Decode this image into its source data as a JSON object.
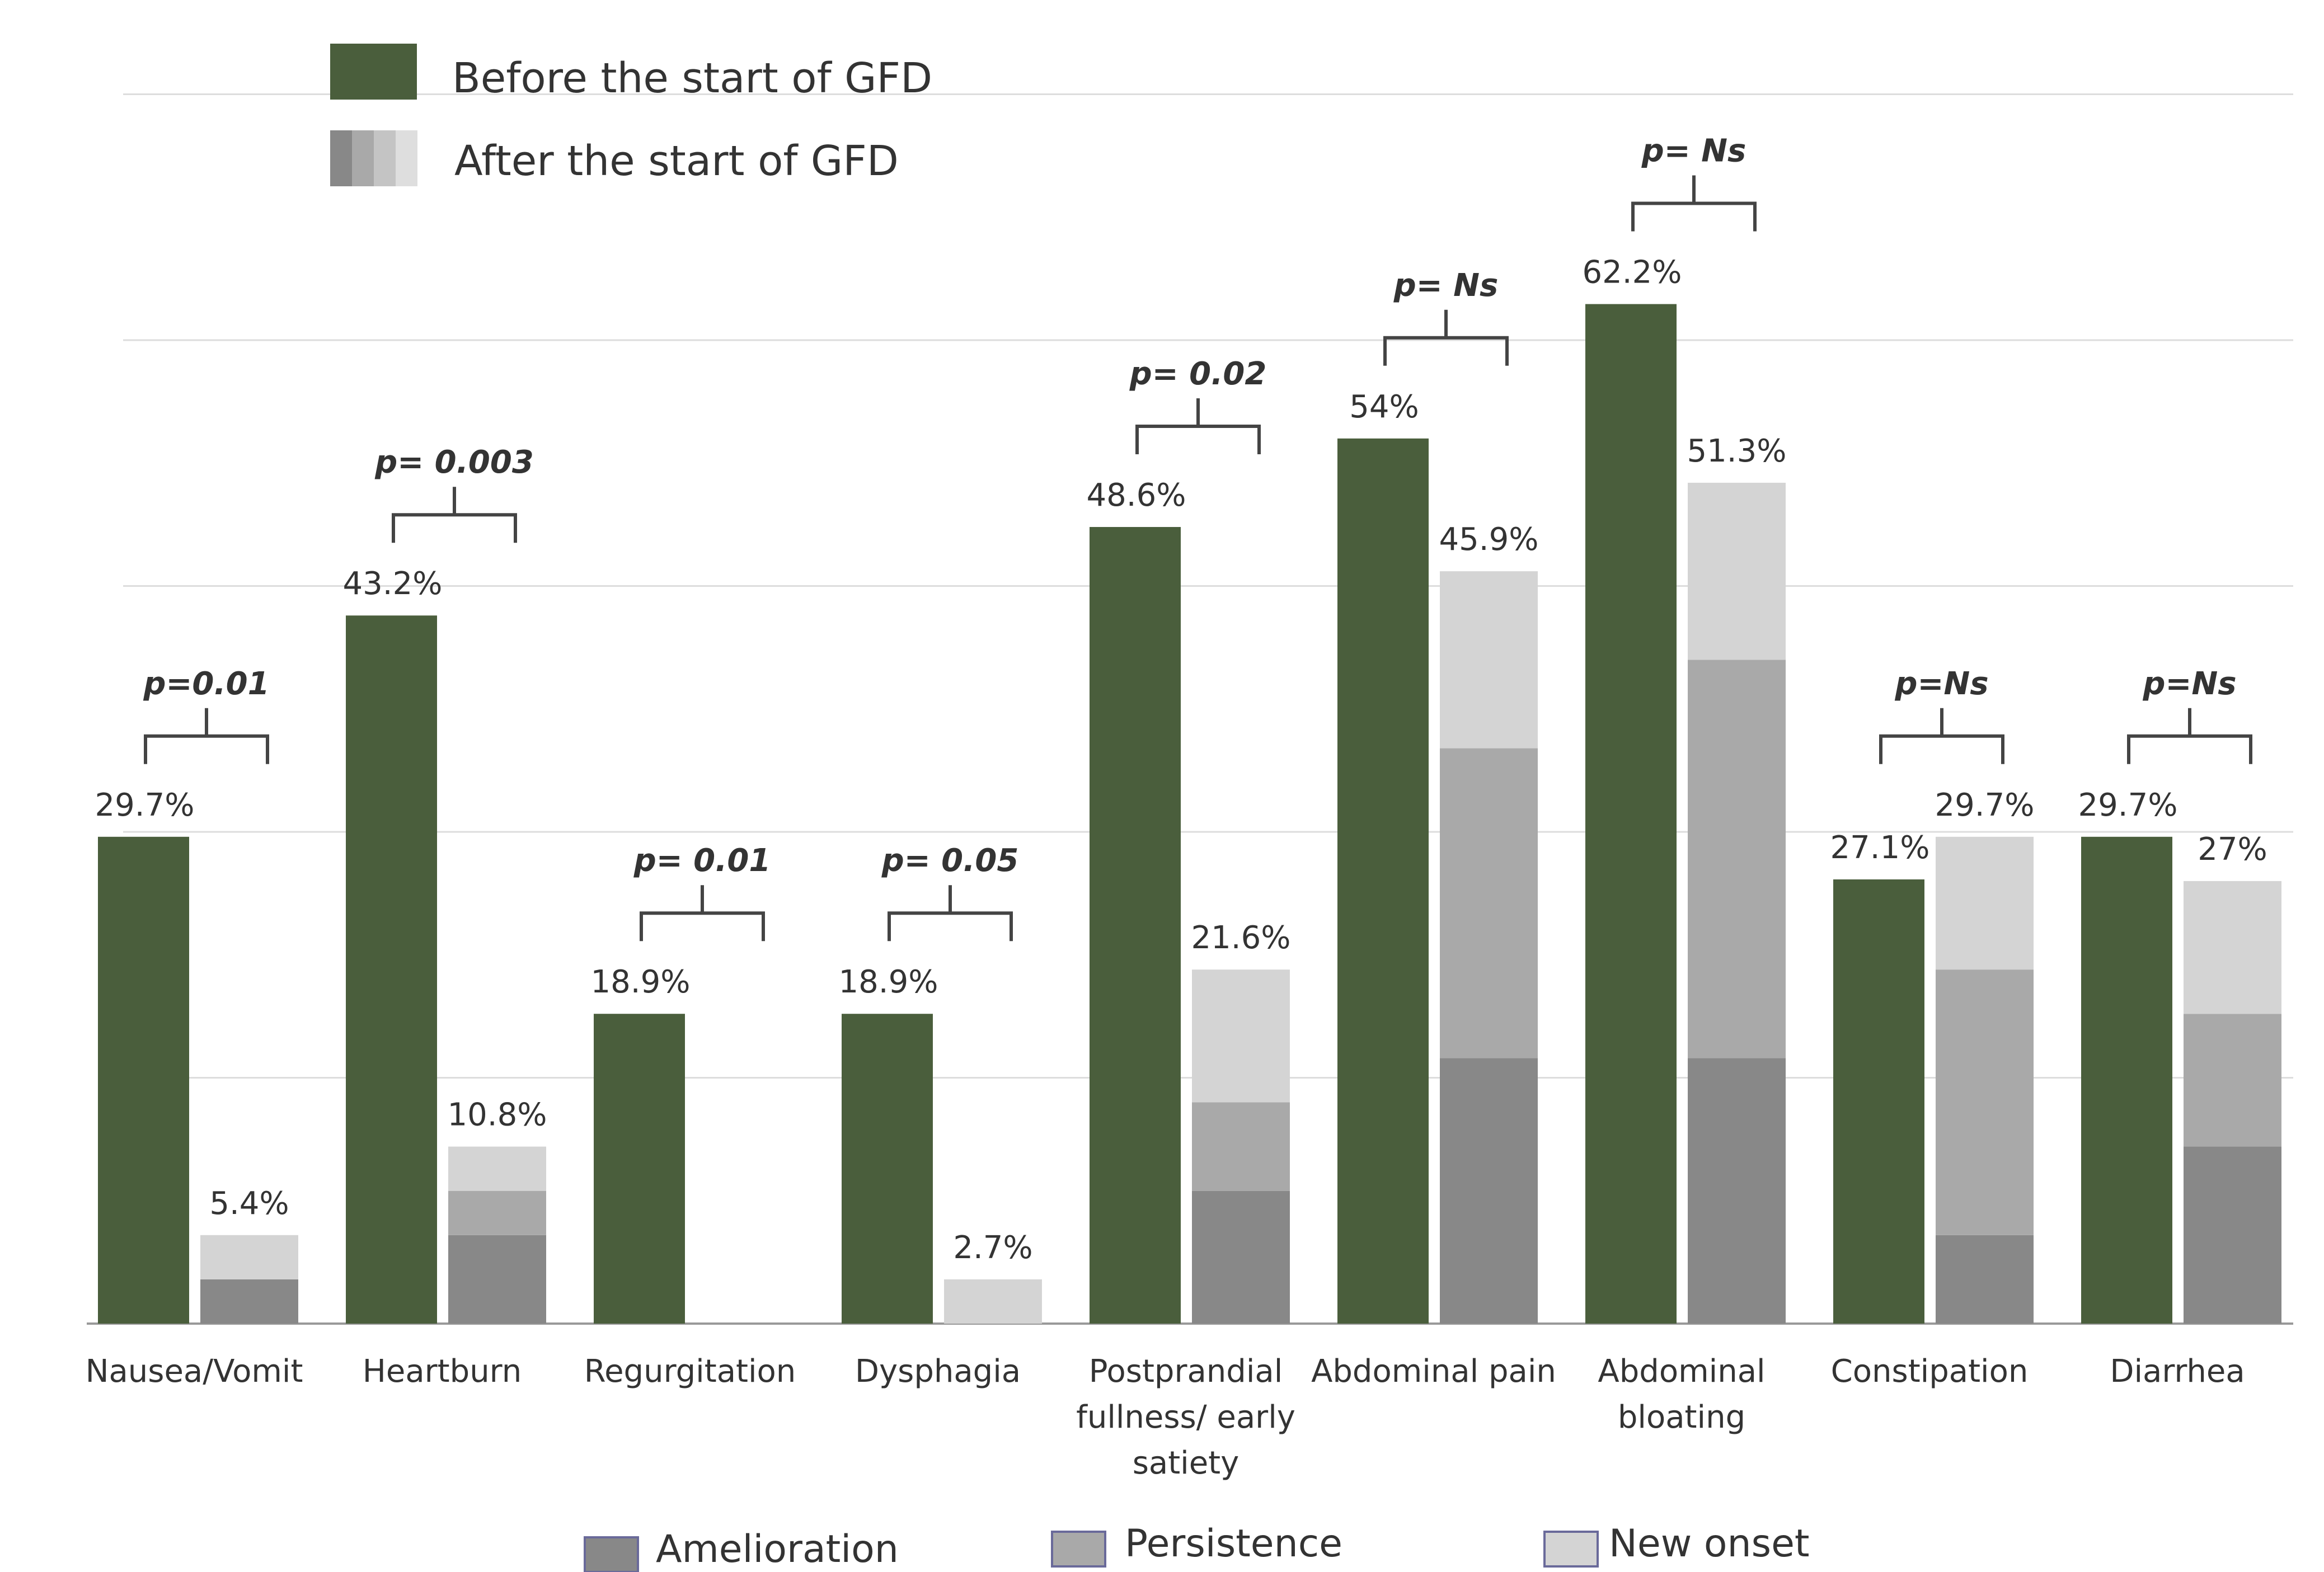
{
  "chart_data": {
    "type": "bar",
    "title": "",
    "xlabel": "",
    "ylabel": "",
    "ylim": [
      0,
      75
    ],
    "grid": true,
    "categories": [
      "Nausea/Vomit",
      "Heartburn",
      "Regurgitation",
      "Dysphagia",
      "Postprandial fullness/ early satiety",
      "Abdominal pain",
      "Abdominal bloating",
      "Constipation",
      "Diarrhea"
    ],
    "category_lines": [
      [
        "Nausea/Vomit"
      ],
      [
        "Heartburn"
      ],
      [
        "Regurgitation"
      ],
      [
        "Dysphagia"
      ],
      [
        "Postprandial",
        "fullness/ early",
        "satiety"
      ],
      [
        "Abdominal pain"
      ],
      [
        "Abdominal",
        "bloating"
      ],
      [
        "Constipation"
      ],
      [
        "Diarrhea"
      ]
    ],
    "before": {
      "name": "Before the start of GFD",
      "values": [
        29.7,
        43.2,
        18.9,
        18.9,
        48.6,
        54.0,
        62.2,
        27.1,
        29.7
      ],
      "labels": [
        "29.7%",
        "43.2%",
        "18.9%",
        "18.9%",
        "48.6%",
        "54%",
        "62.2%",
        "27.1%",
        "29.7%"
      ],
      "color": "#4a5e3c"
    },
    "after": {
      "name": "After the start of GFD",
      "totals": [
        5.4,
        10.8,
        0,
        2.7,
        21.6,
        45.9,
        51.3,
        29.7,
        27.0
      ],
      "labels": [
        "5.4%",
        "10.8%",
        "",
        "2.7%",
        "21.6%",
        "45.9%",
        "51.3%",
        "29.7%",
        "27%"
      ],
      "series": [
        {
          "name": "Amelioration",
          "color": "#888888",
          "values": [
            2.7,
            5.4,
            0,
            0,
            8.1,
            16.2,
            16.2,
            5.4,
            10.8
          ]
        },
        {
          "name": "Persistence",
          "color": "#a9a9a9",
          "values": [
            0,
            2.7,
            0,
            0,
            5.4,
            18.9,
            24.3,
            16.2,
            8.1
          ]
        },
        {
          "name": "New onset",
          "color": "#d4d4d4",
          "values": [
            2.7,
            2.7,
            0,
            2.7,
            8.1,
            10.8,
            10.8,
            8.1,
            8.1
          ]
        }
      ]
    },
    "p_values": [
      "p=0.01",
      "p= 0.003",
      "p= 0.01",
      "p= 0.05",
      "p= 0.02",
      "p= Ns",
      "p= Ns",
      "p=Ns",
      "p=Ns"
    ],
    "legend_top": [
      "Before the start of GFD",
      "After the start of GFD"
    ],
    "legend_bottom": [
      "Amelioration",
      "Persistence",
      "New onset"
    ]
  }
}
